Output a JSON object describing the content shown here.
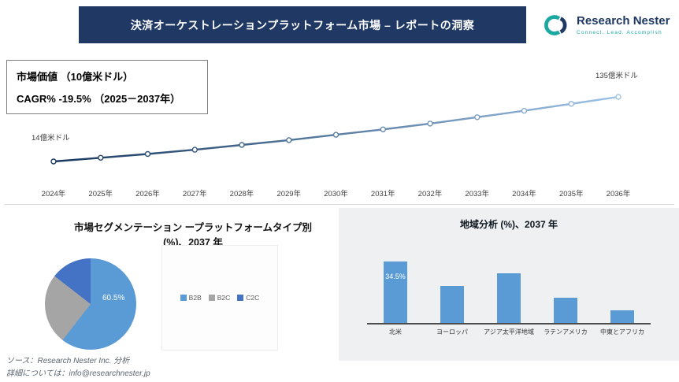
{
  "header": {
    "title": "決済オーケストレーションプラットフォーム市場 – レポートの洞察",
    "logo": {
      "name": "Research Nester",
      "tagline": "Connect. Lead. Accomplish"
    }
  },
  "info_box": {
    "line1": "市場価値 （10億米ドル）",
    "line2": "CAGR% -19.5% （2025－2037年）"
  },
  "footer": {
    "source": "ソース：Research Nester Inc. 分析",
    "contact": "詳細については：info@researchnester.jp"
  },
  "colors": {
    "banner_navy": "#1f3864",
    "logo_teal": "#1ba8a2",
    "accent_blue": "#5b9bd5",
    "gray_slice": "#a5a5a5",
    "dark_blue_slice": "#4472c4",
    "panel_gray": "#eef0f2",
    "line_gradient_start": "#17375e",
    "line_gradient_end": "#9dc3e6"
  },
  "chart_data": [
    {
      "type": "line",
      "title": "市場価値（10億米ドル）",
      "x": [
        "2024年",
        "2025年",
        "2026年",
        "2027年",
        "2028年",
        "2029年",
        "2030年",
        "2031年",
        "2032年",
        "2033年",
        "2034年",
        "2035年",
        "2036年"
      ],
      "values": [
        14,
        21,
        28,
        36,
        45,
        54,
        64,
        74,
        85,
        97,
        109,
        122,
        135
      ],
      "first_point_label": "14億米ドル",
      "last_point_label": "135億米ドル",
      "ylim": [
        14,
        135
      ],
      "grid": false,
      "legend": "none"
    },
    {
      "type": "pie",
      "title": "市場セグメンテーション ープラットフォームタイプ別 (%)、2037 年",
      "segments": [
        {
          "label": "B2B",
          "value": 60.5,
          "color": "#5b9bd5"
        },
        {
          "label": "B2C",
          "value": 25.0,
          "color": "#a5a5a5"
        },
        {
          "label": "C2C",
          "value": 14.5,
          "color": "#4472c4"
        }
      ],
      "center_label": "60.5%",
      "legend_position": "right"
    },
    {
      "type": "bar",
      "title": "地域分析 (%)、2037 年",
      "categories": [
        "北米",
        "ヨーロッパ",
        "アジア太平洋地域",
        "ラテンアメリカ",
        "中東とアフリカ"
      ],
      "values": [
        34.5,
        21,
        28,
        14,
        7
      ],
      "bar_color": "#5b9bd5",
      "data_labels": [
        "34.5%",
        "",
        "",
        "",
        ""
      ],
      "grid": false
    }
  ]
}
